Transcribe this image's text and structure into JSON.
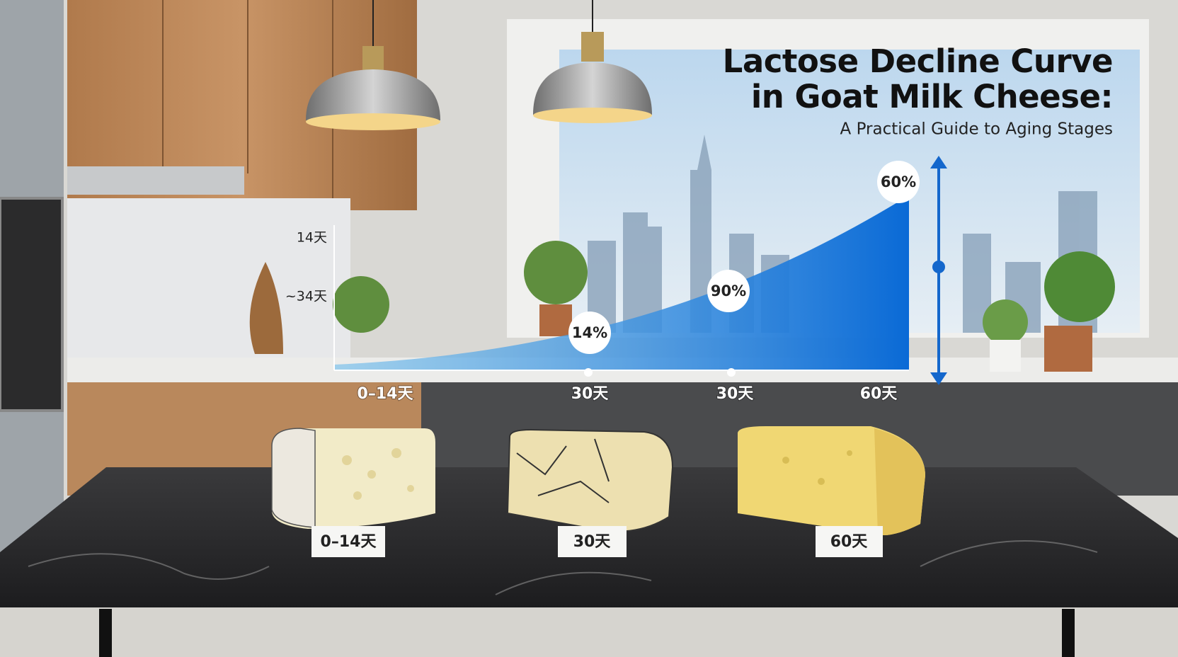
{
  "title": {
    "line1": "Lactose Decline Curve",
    "line2": "in Goat Milk Cheese:",
    "subtitle": "A Practical Guide to Aging Stages"
  },
  "curve": {
    "y_labels": [
      "14天",
      "~34天"
    ],
    "point_labels": [
      "14%",
      "90%",
      "60%"
    ],
    "x_labels": [
      "0–14天",
      "30天",
      "30天",
      "60天"
    ]
  },
  "cheeses": [
    {
      "label": "0–14天"
    },
    {
      "label": "30天"
    },
    {
      "label": "60天"
    }
  ]
}
